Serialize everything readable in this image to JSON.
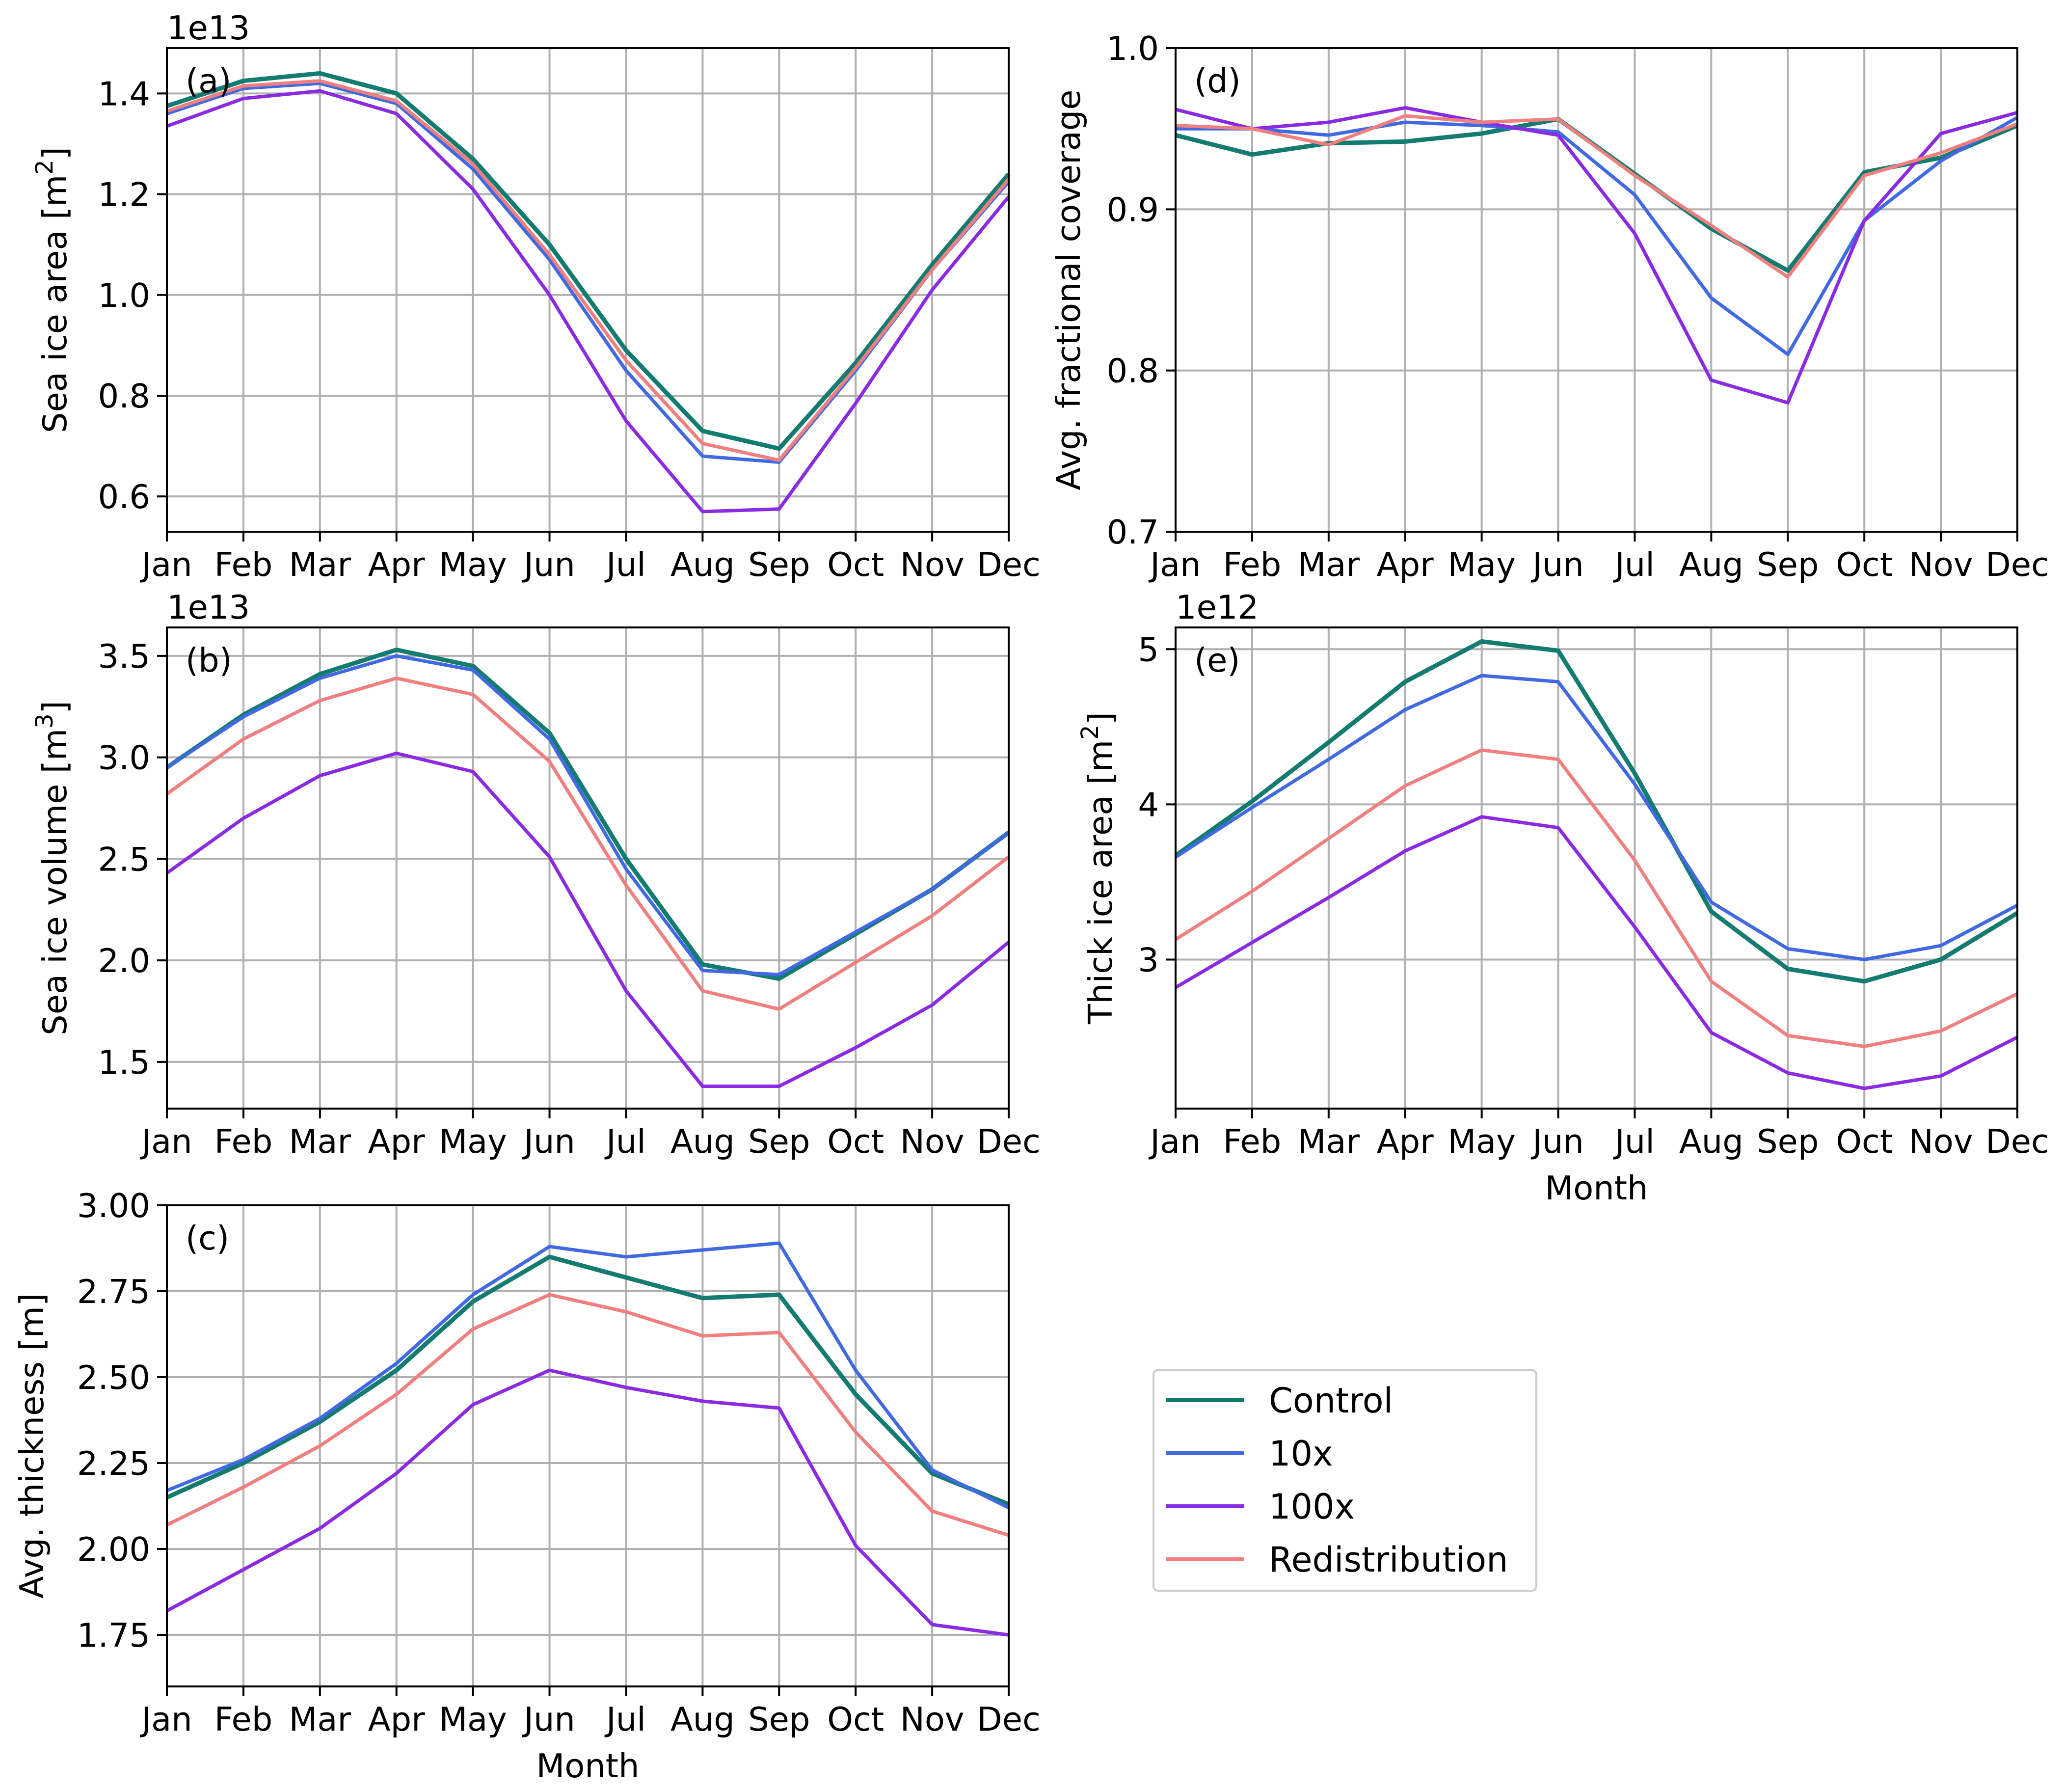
{
  "colors": {
    "Control": "#137b70",
    "10x": "#4169e1",
    "100x": "#8a2be2",
    "Redistribution": "#f08080",
    "grid": "#b0b0b0",
    "axis": "#000000"
  },
  "legend": {
    "placement": "right of panel (c), below panel (e)",
    "entries": [
      "Control",
      "10x",
      "100x",
      "Redistribution"
    ]
  },
  "chart_data": [
    {
      "id": "a",
      "type": "line",
      "panel_label": "(a)",
      "offset_text": "1e13",
      "xlabel": "",
      "ylabel": "Sea ice area [m",
      "ylabel_sup": "2",
      "ylabel_tail": "]",
      "categories": [
        "Jan",
        "Feb",
        "Mar",
        "Apr",
        "May",
        "Jun",
        "Jul",
        "Aug",
        "Sep",
        "Oct",
        "Nov",
        "Dec"
      ],
      "ylim": [
        0.53,
        1.49
      ],
      "yticks": [
        0.6,
        0.8,
        1.0,
        1.2,
        1.4
      ],
      "ytick_labels": [
        "0.6",
        "0.8",
        "1.0",
        "1.2",
        "1.4"
      ],
      "grid": true,
      "series": [
        {
          "name": "Control",
          "values": [
            1.375,
            1.425,
            1.44,
            1.4,
            1.27,
            1.1,
            0.89,
            0.73,
            0.695,
            0.865,
            1.06,
            1.24
          ]
        },
        {
          "name": "10x",
          "values": [
            1.36,
            1.41,
            1.42,
            1.38,
            1.25,
            1.07,
            0.85,
            0.68,
            0.668,
            0.85,
            1.05,
            1.225
          ]
        },
        {
          "name": "100x",
          "values": [
            1.335,
            1.39,
            1.405,
            1.36,
            1.21,
            1.0,
            0.75,
            0.57,
            0.575,
            0.785,
            1.01,
            1.195
          ]
        },
        {
          "name": "Redistribution",
          "values": [
            1.365,
            1.415,
            1.425,
            1.385,
            1.26,
            1.08,
            0.87,
            0.705,
            0.672,
            0.855,
            1.05,
            1.23
          ]
        }
      ]
    },
    {
      "id": "d",
      "type": "line",
      "panel_label": "(d)",
      "offset_text": "",
      "xlabel": "",
      "ylabel": "Avg. fractional coverage",
      "ylabel_sup": "",
      "ylabel_tail": "",
      "categories": [
        "Jan",
        "Feb",
        "Mar",
        "Apr",
        "May",
        "Jun",
        "Jul",
        "Aug",
        "Sep",
        "Oct",
        "Nov",
        "Dec"
      ],
      "ylim": [
        0.7,
        1.0
      ],
      "yticks": [
        0.7,
        0.8,
        0.9,
        1.0
      ],
      "ytick_labels": [
        "0.7",
        "0.8",
        "0.9",
        "1.0"
      ],
      "grid": true,
      "series": [
        {
          "name": "Control",
          "values": [
            0.946,
            0.934,
            0.941,
            0.942,
            0.947,
            0.956,
            0.922,
            0.888,
            0.862,
            0.923,
            0.932,
            0.952
          ]
        },
        {
          "name": "10x",
          "values": [
            0.95,
            0.95,
            0.946,
            0.954,
            0.952,
            0.948,
            0.909,
            0.845,
            0.81,
            0.893,
            0.93,
            0.957
          ]
        },
        {
          "name": "100x",
          "values": [
            0.962,
            0.95,
            0.954,
            0.963,
            0.954,
            0.946,
            0.885,
            0.794,
            0.78,
            0.893,
            0.947,
            0.96
          ]
        },
        {
          "name": "Redistribution",
          "values": [
            0.952,
            0.95,
            0.94,
            0.958,
            0.954,
            0.956,
            0.921,
            0.89,
            0.858,
            0.921,
            0.935,
            0.953
          ]
        }
      ]
    },
    {
      "id": "b",
      "type": "line",
      "panel_label": "(b)",
      "offset_text": "1e13",
      "xlabel": "",
      "ylabel": "Sea ice volume [m",
      "ylabel_sup": "3",
      "ylabel_tail": "]",
      "categories": [
        "Jan",
        "Feb",
        "Mar",
        "Apr",
        "May",
        "Jun",
        "Jul",
        "Aug",
        "Sep",
        "Oct",
        "Nov",
        "Dec"
      ],
      "ylim": [
        1.27,
        3.64
      ],
      "yticks": [
        1.5,
        2.0,
        2.5,
        3.0,
        3.5
      ],
      "ytick_labels": [
        "1.5",
        "2.0",
        "2.5",
        "3.0",
        "3.5"
      ],
      "grid": true,
      "series": [
        {
          "name": "Control",
          "values": [
            2.95,
            3.21,
            3.41,
            3.53,
            3.45,
            3.12,
            2.5,
            1.98,
            1.91,
            2.13,
            2.35,
            2.63
          ]
        },
        {
          "name": "10x",
          "values": [
            2.95,
            3.2,
            3.39,
            3.5,
            3.43,
            3.09,
            2.45,
            1.95,
            1.93,
            2.14,
            2.35,
            2.63
          ]
        },
        {
          "name": "100x",
          "values": [
            2.43,
            2.7,
            2.91,
            3.02,
            2.93,
            2.51,
            1.85,
            1.38,
            1.38,
            1.57,
            1.78,
            2.09
          ]
        },
        {
          "name": "Redistribution",
          "values": [
            2.82,
            3.09,
            3.28,
            3.39,
            3.31,
            2.98,
            2.37,
            1.85,
            1.76,
            1.99,
            2.22,
            2.51
          ]
        }
      ]
    },
    {
      "id": "e",
      "type": "line",
      "panel_label": "(e)",
      "offset_text": "1e12",
      "xlabel": "Month",
      "ylabel": "Thick ice area [m",
      "ylabel_sup": "2",
      "ylabel_tail": "]",
      "categories": [
        "Jan",
        "Feb",
        "Mar",
        "Apr",
        "May",
        "Jun",
        "Jul",
        "Aug",
        "Sep",
        "Oct",
        "Nov",
        "Dec"
      ],
      "ylim": [
        2.04,
        5.14
      ],
      "yticks": [
        3,
        4,
        5
      ],
      "ytick_labels": [
        "3",
        "4",
        "5"
      ],
      "grid": true,
      "series": [
        {
          "name": "Control",
          "values": [
            3.67,
            4.02,
            4.4,
            4.79,
            5.05,
            4.99,
            4.2,
            3.31,
            2.94,
            2.86,
            3.0,
            3.3
          ]
        },
        {
          "name": "10x",
          "values": [
            3.66,
            3.98,
            4.29,
            4.61,
            4.83,
            4.79,
            4.13,
            3.37,
            3.07,
            3.0,
            3.09,
            3.35
          ]
        },
        {
          "name": "100x",
          "values": [
            2.82,
            3.11,
            3.4,
            3.7,
            3.92,
            3.85,
            3.21,
            2.53,
            2.27,
            2.17,
            2.25,
            2.5
          ]
        },
        {
          "name": "Redistribution",
          "values": [
            3.13,
            3.44,
            3.78,
            4.12,
            4.35,
            4.29,
            3.64,
            2.86,
            2.51,
            2.44,
            2.54,
            2.78
          ]
        }
      ]
    },
    {
      "id": "c",
      "type": "line",
      "panel_label": "(c)",
      "offset_text": "",
      "xlabel": "Month",
      "ylabel": "Avg. thickness [m]",
      "ylabel_sup": "",
      "ylabel_tail": "",
      "categories": [
        "Jan",
        "Feb",
        "Mar",
        "Apr",
        "May",
        "Jun",
        "Jul",
        "Aug",
        "Sep",
        "Oct",
        "Nov",
        "Dec"
      ],
      "ylim": [
        1.6,
        3.0
      ],
      "yticks": [
        1.75,
        2.0,
        2.25,
        2.5,
        2.75,
        3.0
      ],
      "ytick_labels": [
        "1.75",
        "2.00",
        "2.25",
        "2.50",
        "2.75",
        "3.00"
      ],
      "grid": true,
      "series": [
        {
          "name": "Control",
          "values": [
            2.15,
            2.25,
            2.37,
            2.52,
            2.72,
            2.85,
            2.79,
            2.73,
            2.74,
            2.45,
            2.22,
            2.13
          ]
        },
        {
          "name": "10x",
          "values": [
            2.17,
            2.26,
            2.38,
            2.54,
            2.74,
            2.88,
            2.85,
            2.87,
            2.89,
            2.52,
            2.23,
            2.12
          ]
        },
        {
          "name": "100x",
          "values": [
            1.82,
            1.94,
            2.06,
            2.22,
            2.42,
            2.52,
            2.47,
            2.43,
            2.41,
            2.01,
            1.78,
            1.75
          ]
        },
        {
          "name": "Redistribution",
          "values": [
            2.07,
            2.18,
            2.3,
            2.45,
            2.64,
            2.74,
            2.69,
            2.62,
            2.63,
            2.34,
            2.11,
            2.04
          ]
        }
      ]
    }
  ]
}
